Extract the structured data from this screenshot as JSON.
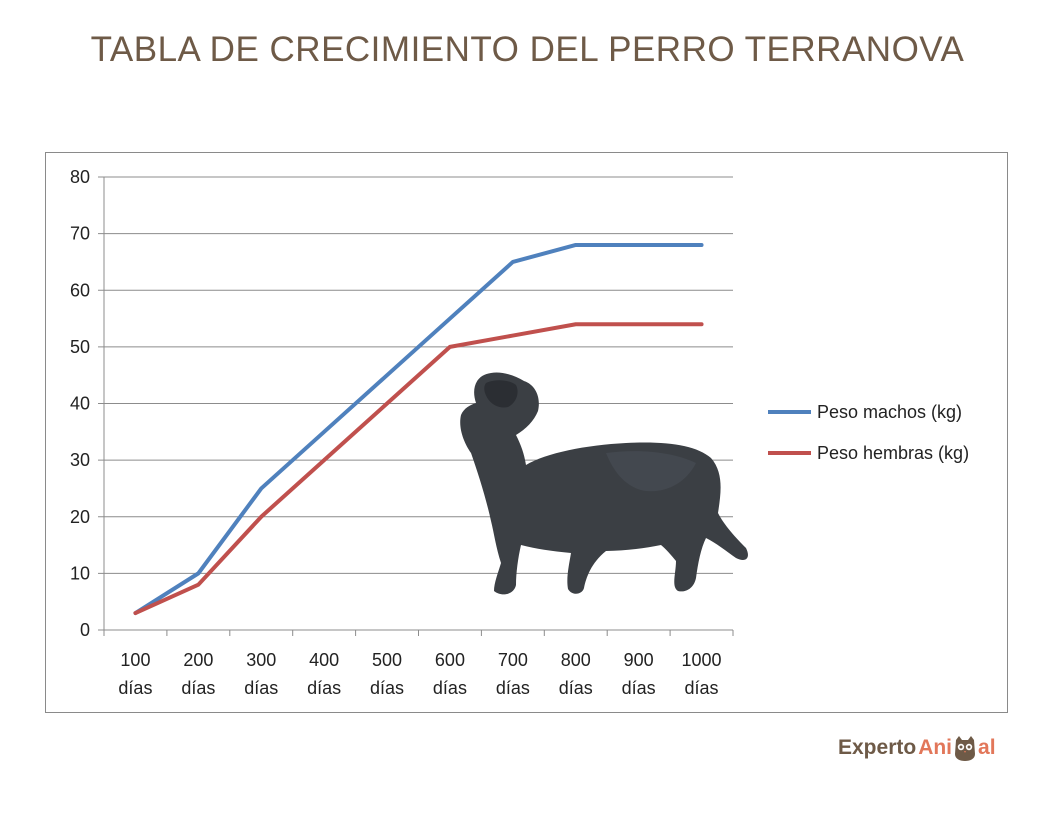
{
  "title": "TABLA DE CRECIMIENTO DEL PERRO TERRANOVA",
  "chart_data": {
    "type": "line",
    "title": "TABLA DE CRECIMIENTO DEL PERRO TERRANOVA",
    "xlabel": "",
    "ylabel": "",
    "categories": [
      [
        "100",
        "días"
      ],
      [
        "200",
        "días"
      ],
      [
        "300",
        "días"
      ],
      [
        "400",
        "días"
      ],
      [
        "500",
        "días"
      ],
      [
        "600",
        "días"
      ],
      [
        "700",
        "días"
      ],
      [
        "800",
        "días"
      ],
      [
        "900",
        "días"
      ],
      [
        "1000",
        "días"
      ]
    ],
    "ylim": [
      0,
      80
    ],
    "yticks": [
      0,
      10,
      20,
      30,
      40,
      50,
      60,
      70,
      80
    ],
    "grid": true,
    "legend_position": "right",
    "series": [
      {
        "name": "Peso machos (kg)",
        "color": "#4f81bd",
        "values": [
          3,
          10,
          25,
          35,
          45,
          55,
          65,
          68,
          68,
          68
        ]
      },
      {
        "name": "Peso hembras (kg)",
        "color": "#c0504d",
        "values": [
          3,
          8,
          20,
          30,
          40,
          50,
          52,
          54,
          54,
          54
        ]
      }
    ]
  },
  "logo": {
    "word1": "Experto",
    "word2": "Ani",
    "word3": "al"
  }
}
